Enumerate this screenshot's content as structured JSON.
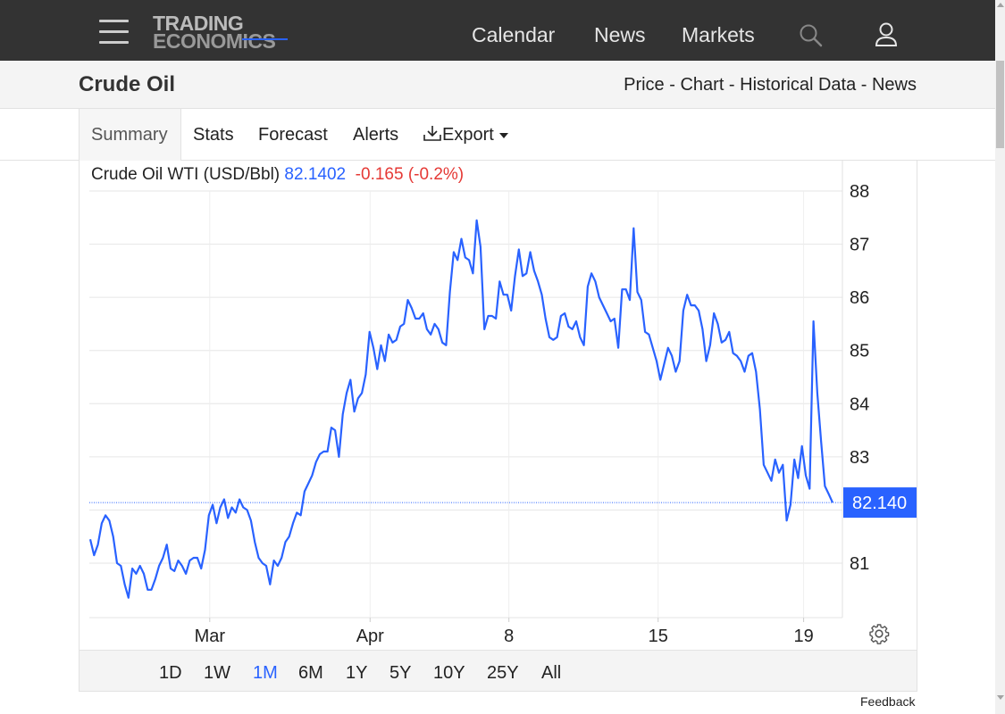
{
  "header": {
    "logo_line1": "TRADING",
    "logo_line2": "ECONOMICS",
    "nav": [
      {
        "label": "Calendar"
      },
      {
        "label": "News"
      },
      {
        "label": "Markets"
      }
    ]
  },
  "page": {
    "title": "Crude Oil",
    "links": [
      "Price",
      "Chart",
      "Historical Data",
      "News"
    ],
    "link_sep": " - "
  },
  "tabs": [
    {
      "label": "Summary"
    },
    {
      "label": "Stats"
    },
    {
      "label": "Forecast"
    },
    {
      "label": "Alerts"
    },
    {
      "label": "Export"
    }
  ],
  "legend": {
    "series": "Crude Oil WTI (USD/Bbl)",
    "value": "82.1402",
    "change": "-0.165 (-0.2%)"
  },
  "ranges": [
    {
      "label": "1D"
    },
    {
      "label": "1W"
    },
    {
      "label": "1M"
    },
    {
      "label": "6M"
    },
    {
      "label": "1Y"
    },
    {
      "label": "5Y"
    },
    {
      "label": "10Y"
    },
    {
      "label": "25Y"
    },
    {
      "label": "All"
    }
  ],
  "active_range": "1M",
  "feedback": "Feedback",
  "colors": {
    "line": "#2962ff",
    "price_tag_bg": "#2962ff",
    "change_negative": "#e53935",
    "topbar_bg": "#333333"
  },
  "chart_data": {
    "type": "line",
    "ylim": [
      80.0,
      88.4
    ],
    "yticks": [
      88,
      87,
      86,
      85,
      84,
      83,
      82,
      81
    ],
    "ytick_labels": [
      "88",
      "87",
      "86",
      "85",
      "84",
      "83",
      "",
      "81"
    ],
    "last_price_label": "82.140",
    "last_price": 82.14,
    "x_ticks": [
      {
        "label": "Mar",
        "t": 0.161
      },
      {
        "label": "Apr",
        "t": 0.377
      },
      {
        "label": "8",
        "t": 0.564
      },
      {
        "label": "15",
        "t": 0.765
      },
      {
        "label": "19",
        "t": 0.961
      }
    ],
    "series": [
      {
        "values": [
          81.45,
          81.15,
          81.35,
          81.75,
          81.9,
          81.8,
          81.5,
          81.0,
          80.95,
          80.6,
          80.35,
          80.9,
          80.8,
          80.95,
          80.8,
          80.5,
          80.5,
          80.7,
          80.95,
          81.1,
          81.35,
          80.9,
          80.85,
          81.05,
          80.95,
          80.8,
          81.05,
          81.1,
          81.1,
          80.9,
          81.25,
          81.9,
          82.1,
          81.75,
          82.05,
          82.2,
          81.85,
          82.05,
          81.95,
          82.2,
          82.05,
          82.0,
          81.8,
          81.4,
          81.1,
          81.0,
          80.95,
          80.6,
          81.05,
          80.95,
          81.1,
          81.4,
          81.5,
          81.75,
          81.95,
          81.9,
          82.35,
          82.5,
          82.65,
          82.9,
          83.05,
          83.1,
          83.1,
          83.55,
          83.5,
          83.0,
          83.8,
          84.2,
          84.45,
          83.85,
          84.1,
          84.2,
          84.55,
          85.35,
          85.05,
          84.65,
          85.1,
          84.8,
          85.3,
          85.15,
          85.2,
          85.45,
          85.5,
          85.95,
          85.8,
          85.6,
          85.6,
          85.7,
          85.4,
          85.3,
          85.5,
          85.4,
          85.15,
          85.1,
          86.1,
          86.85,
          86.7,
          87.1,
          86.75,
          86.7,
          86.45,
          87.45,
          86.95,
          85.4,
          85.65,
          85.65,
          85.6,
          86.3,
          86.05,
          86.05,
          85.75,
          86.4,
          86.9,
          86.4,
          86.45,
          86.85,
          86.5,
          86.3,
          86.05,
          85.6,
          85.25,
          85.2,
          85.25,
          85.65,
          85.7,
          85.45,
          85.4,
          85.55,
          85.25,
          85.1,
          86.2,
          86.45,
          86.3,
          86.0,
          85.85,
          85.7,
          85.55,
          85.6,
          85.05,
          86.15,
          86.15,
          85.95,
          87.3,
          86.1,
          85.95,
          85.35,
          85.3,
          85.05,
          84.8,
          84.45,
          84.75,
          85.05,
          84.9,
          84.6,
          84.8,
          85.75,
          86.05,
          85.85,
          85.85,
          85.75,
          85.4,
          84.8,
          85.1,
          85.7,
          85.5,
          85.15,
          85.2,
          85.35,
          84.95,
          84.9,
          84.8,
          84.6,
          84.9,
          84.95,
          84.6,
          83.9,
          82.85,
          82.7,
          82.55,
          82.95,
          82.7,
          82.85,
          81.8,
          82.1,
          82.95,
          82.6,
          83.2,
          82.65,
          82.4,
          85.55,
          84.2,
          83.3,
          82.45,
          82.3,
          82.14
        ]
      }
    ]
  }
}
